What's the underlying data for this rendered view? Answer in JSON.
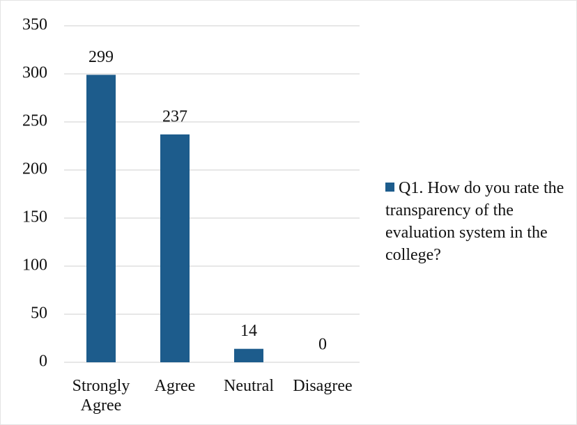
{
  "chart_data": {
    "type": "bar",
    "categories": [
      "Strongly Agree",
      "Agree",
      "Neutral",
      "Disagree"
    ],
    "series": [
      {
        "name": "Q1. How do you rate the transparency of the evaluation system in the college?",
        "color": "#1d5c8c",
        "values": [
          299,
          237,
          14,
          0
        ]
      }
    ],
    "ylim": [
      0,
      350
    ],
    "yticks": [
      0,
      50,
      100,
      150,
      200,
      250,
      300,
      350
    ],
    "grid": true,
    "legend": "right"
  }
}
